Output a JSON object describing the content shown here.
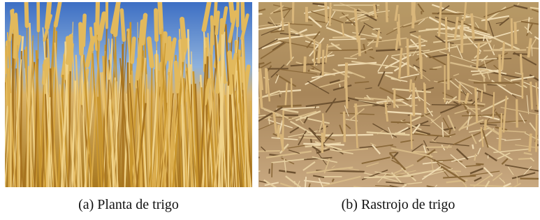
{
  "figure": {
    "subfigures": [
      {
        "label": "(a)",
        "caption": "Planta de trigo"
      },
      {
        "label": "(b)",
        "caption": "Rastrojo de trigo"
      }
    ]
  }
}
